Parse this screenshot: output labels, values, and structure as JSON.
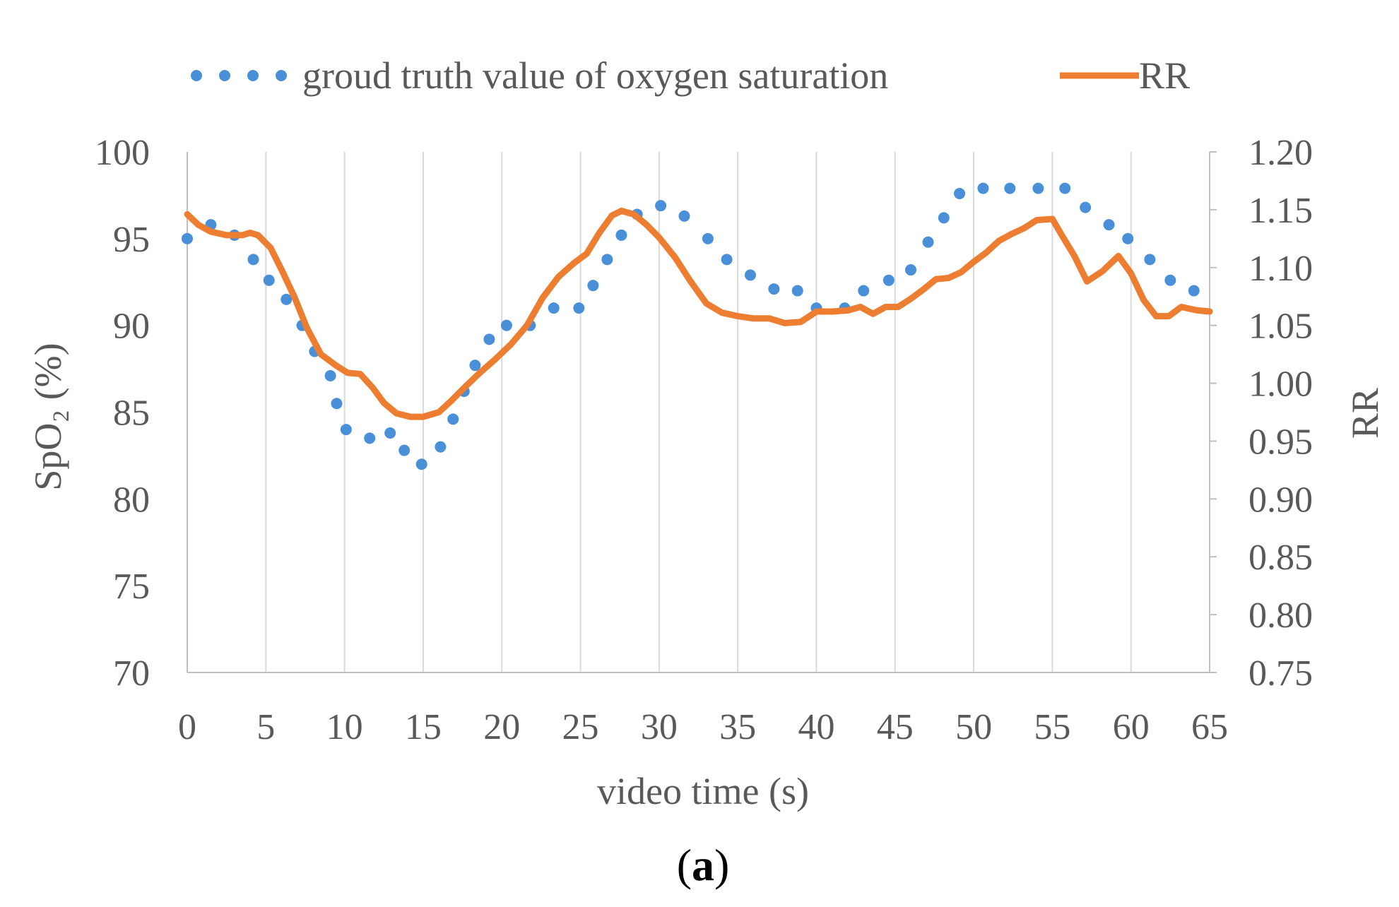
{
  "chart_data": {
    "type": "line",
    "title": "",
    "panel_label": "a",
    "xlabel": "video time (s)",
    "ylabel_left": "SpO₂ (%)",
    "ylabel_right": "RR",
    "xlim": [
      0,
      65
    ],
    "ylim_left": [
      70,
      100
    ],
    "ylim_right": [
      0.75,
      1.2
    ],
    "x_ticks": [
      "0",
      "5",
      "10",
      "15",
      "20",
      "25",
      "30",
      "35",
      "40",
      "45",
      "50",
      "55",
      "60",
      "65"
    ],
    "y_ticks_left": [
      "70",
      "75",
      "80",
      "85",
      "90",
      "95",
      "100"
    ],
    "y_ticks_right": [
      "0.75",
      "0.80",
      "0.85",
      "0.90",
      "0.95",
      "1.00",
      "1.05",
      "1.10",
      "1.15",
      "1.20"
    ],
    "grid": "vertical",
    "legend_position": "top",
    "series": [
      {
        "name": "groud truth value of oxygen saturation",
        "axis": "left",
        "style": "dotted",
        "color": "#4a90d9",
        "x": [
          0,
          1.5,
          3,
          4.2,
          5.2,
          6.3,
          7.3,
          8.1,
          9.1,
          9.5,
          10.1,
          11.6,
          12.9,
          13.8,
          14.9,
          16.1,
          16.9,
          17.6,
          18.3,
          19.2,
          20.3,
          21.8,
          23.3,
          24.9,
          25.8,
          26.7,
          27.6,
          28.6,
          30.1,
          31.6,
          33.1,
          34.3,
          35.8,
          37.3,
          38.8,
          40.0,
          41.8,
          43.0,
          44.6,
          46.0,
          47.1,
          48.1,
          49.1,
          50.6,
          52.3,
          54.1,
          55.8,
          57.1,
          58.6,
          59.8,
          61.2,
          62.5,
          64.0
        ],
        "values": [
          95.0,
          95.8,
          95.2,
          93.8,
          92.6,
          91.5,
          90.0,
          88.5,
          87.1,
          85.5,
          84.0,
          83.5,
          83.8,
          82.8,
          82.0,
          83.0,
          84.6,
          86.2,
          87.7,
          89.2,
          90.0,
          90.0,
          91.0,
          91.0,
          92.3,
          93.8,
          95.2,
          96.4,
          96.9,
          96.3,
          95.0,
          93.8,
          92.9,
          92.1,
          92.0,
          91.0,
          91.0,
          92.0,
          92.6,
          93.2,
          94.8,
          96.2,
          97.6,
          97.9,
          97.9,
          97.9,
          97.9,
          96.8,
          95.8,
          95.0,
          93.8,
          92.6,
          92.0
        ]
      },
      {
        "name": "RR",
        "axis": "right",
        "style": "solid",
        "color": "#ed7d31",
        "x": [
          0,
          0.7,
          1.5,
          2.5,
          3.5,
          4.0,
          4.5,
          5.3,
          6.0,
          6.8,
          7.6,
          8.5,
          9.5,
          10.2,
          11.0,
          11.8,
          12.5,
          13.3,
          14.2,
          15.0,
          16.0,
          16.8,
          17.6,
          18.6,
          19.6,
          20.6,
          21.6,
          22.6,
          23.6,
          24.6,
          25.4,
          26.2,
          27.0,
          27.6,
          28.4,
          29.2,
          30.0,
          31.0,
          32.0,
          33.0,
          34.0,
          35.0,
          36.0,
          37.0,
          38.0,
          39.0,
          40.0,
          41.0,
          42.0,
          42.8,
          43.6,
          44.4,
          45.2,
          46.0,
          46.8,
          47.6,
          48.4,
          49.2,
          50.0,
          50.8,
          51.6,
          52.4,
          53.2,
          54.0,
          55.0,
          55.6,
          56.4,
          57.2,
          58.2,
          59.2,
          60.0,
          60.8,
          61.6,
          62.4,
          63.2,
          64.2,
          65.0
        ],
        "values": [
          1.146,
          1.137,
          1.131,
          1.128,
          1.128,
          1.13,
          1.128,
          1.117,
          1.098,
          1.075,
          1.048,
          1.025,
          1.015,
          1.009,
          1.008,
          0.996,
          0.983,
          0.974,
          0.971,
          0.971,
          0.975,
          0.985,
          0.996,
          1.009,
          1.021,
          1.034,
          1.05,
          1.074,
          1.092,
          1.104,
          1.112,
          1.13,
          1.145,
          1.149,
          1.146,
          1.137,
          1.126,
          1.109,
          1.088,
          1.069,
          1.061,
          1.058,
          1.056,
          1.056,
          1.052,
          1.053,
          1.062,
          1.062,
          1.063,
          1.066,
          1.06,
          1.066,
          1.066,
          1.073,
          1.081,
          1.09,
          1.091,
          1.096,
          1.105,
          1.113,
          1.123,
          1.129,
          1.134,
          1.141,
          1.142,
          1.128,
          1.11,
          1.088,
          1.097,
          1.11,
          1.095,
          1.072,
          1.058,
          1.058,
          1.066,
          1.063,
          1.062
        ]
      }
    ]
  }
}
